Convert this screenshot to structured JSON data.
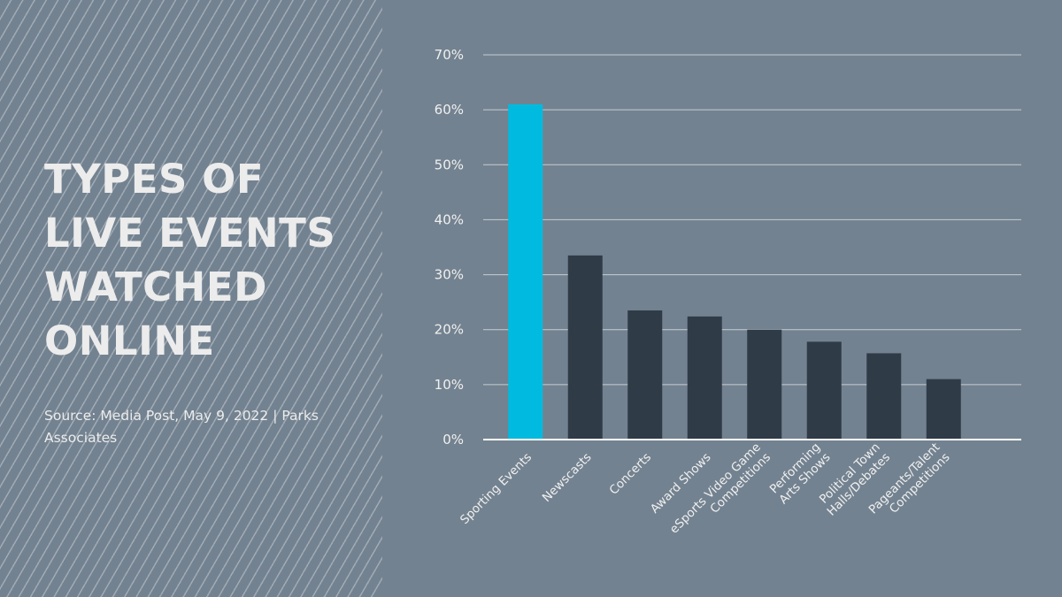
{
  "title": "TYPES OF LIVE EVENTS WATCHED ONLINE",
  "source": "Source: Media Post, May 9, 2022 | Parks Associates",
  "colors": {
    "highlight": "#00bbdf",
    "bar": "#2f3b47",
    "grid": "#c5ccd2",
    "axis": "#ffffff",
    "text": "#ececec"
  },
  "chart_data": {
    "type": "bar",
    "title": "TYPES OF LIVE EVENTS WATCHED ONLINE",
    "xlabel": "",
    "ylabel": "",
    "ylim": [
      0,
      70
    ],
    "yticks": [
      0,
      10,
      20,
      30,
      40,
      50,
      60,
      70
    ],
    "ytick_labels": [
      "0%",
      "10%",
      "20%",
      "30%",
      "40%",
      "50%",
      "60%",
      "70%"
    ],
    "grid": true,
    "categories": [
      [
        "Sporting Events"
      ],
      [
        "Newscasts"
      ],
      [
        "Concerts"
      ],
      [
        "Award Shows"
      ],
      [
        "eSports Video Game",
        "Competitions"
      ],
      [
        "Performing",
        "Arts Shows"
      ],
      [
        "Political Town",
        "Halls/Debates"
      ],
      [
        "Pageants/Talent",
        "Competitions"
      ]
    ],
    "values": [
      61,
      33.5,
      23.5,
      22.4,
      20,
      17.8,
      15.7,
      11
    ],
    "highlight_index": 0
  }
}
